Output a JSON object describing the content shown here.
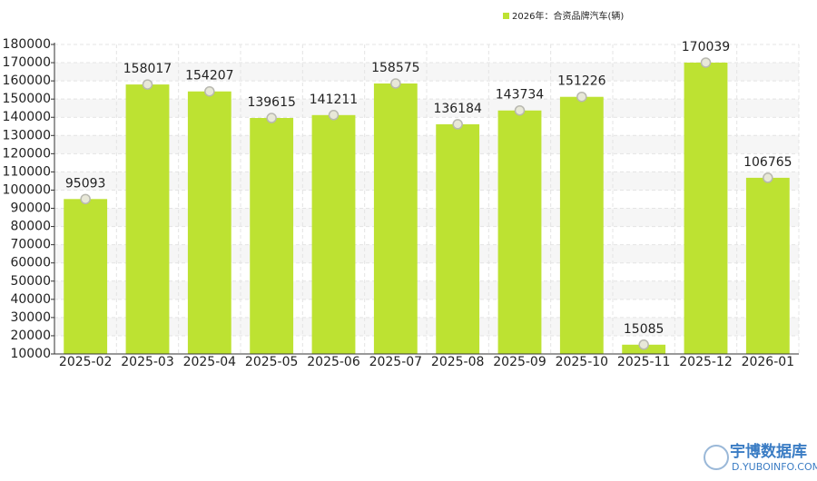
{
  "chart_data": {
    "type": "bar",
    "categories": [
      "2025-02",
      "2025-03",
      "2025-04",
      "2025-05",
      "2025-06",
      "2025-07",
      "2025-08",
      "2025-09",
      "2025-10",
      "2025-11",
      "2025-12",
      "2026-01"
    ],
    "series": [
      {
        "name": "2026年：合资品牌汽车(辆)",
        "color": "#bde232",
        "values": [
          95093,
          158017,
          154207,
          139615,
          141211,
          158575,
          136184,
          143734,
          151226,
          15085,
          170039,
          106765
        ]
      }
    ],
    "ylim": [
      10000,
      180000
    ],
    "yticks": [
      10000,
      20000,
      30000,
      40000,
      50000,
      60000,
      70000,
      80000,
      90000,
      100000,
      110000,
      120000,
      130000,
      140000,
      150000,
      160000,
      170000,
      180000
    ],
    "grid": true,
    "legend": "top-right"
  },
  "watermark": {
    "name": "宇博数据库",
    "url": "D.YUBOINFO.COM"
  }
}
